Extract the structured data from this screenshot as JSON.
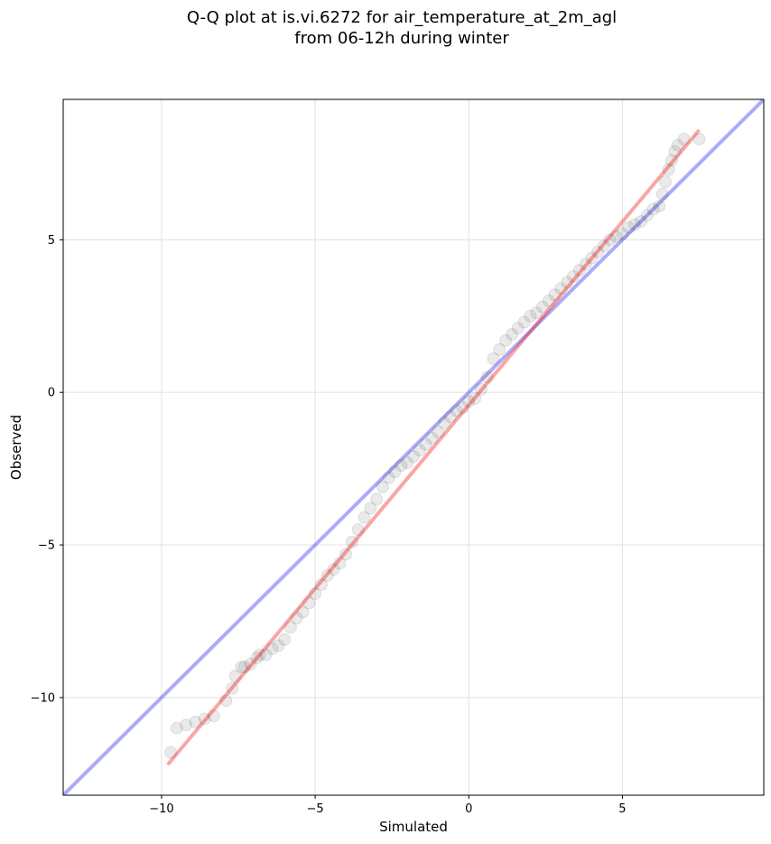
{
  "chart_data": {
    "type": "scatter",
    "title_line1": "Q-Q plot at is.vi.6272 for air_temperature_at_2m_agl",
    "title_line2": "from 06-12h during winter",
    "xlabel": "Simulated",
    "ylabel": "Observed",
    "xlim": [
      -13.2,
      9.6
    ],
    "ylim": [
      -13.2,
      9.6
    ],
    "xticks": [
      -10,
      -5,
      0,
      5
    ],
    "yticks": [
      -10,
      -5,
      0,
      5
    ],
    "xtick_labels": [
      "−10",
      "−5",
      "0",
      "5"
    ],
    "ytick_labels": [
      "−10",
      "−5",
      "0",
      "5"
    ],
    "grid": true,
    "series": [
      {
        "role": "quantiles",
        "color": "#333333",
        "x": [
          -9.7,
          -9.5,
          -9.2,
          -8.9,
          -8.6,
          -8.3,
          -7.9,
          -7.7,
          -7.6,
          -7.4,
          -7.3,
          -7.1,
          -6.9,
          -6.8,
          -6.6,
          -6.4,
          -6.2,
          -6.0,
          -5.8,
          -5.6,
          -5.4,
          -5.2,
          -5.0,
          -4.8,
          -4.6,
          -4.4,
          -4.2,
          -4.0,
          -3.8,
          -3.6,
          -3.4,
          -3.2,
          -3.0,
          -2.8,
          -2.6,
          -2.4,
          -2.2,
          -2.0,
          -1.8,
          -1.6,
          -1.4,
          -1.2,
          -1.0,
          -0.8,
          -0.6,
          -0.4,
          -0.2,
          0.0,
          0.2,
          0.4,
          0.6,
          0.8,
          1.0,
          1.2,
          1.4,
          1.6,
          1.8,
          2.0,
          2.2,
          2.4,
          2.6,
          2.8,
          3.0,
          3.2,
          3.4,
          3.6,
          3.8,
          4.0,
          4.2,
          4.4,
          4.6,
          4.8,
          5.0,
          5.2,
          5.4,
          5.6,
          5.8,
          6.0,
          6.2,
          6.3,
          6.4,
          6.5,
          6.6,
          6.7,
          6.8,
          7.0,
          7.5
        ],
        "y": [
          -11.8,
          -11.0,
          -10.9,
          -10.8,
          -10.7,
          -10.6,
          -10.1,
          -9.7,
          -9.3,
          -9.0,
          -9.0,
          -8.9,
          -8.7,
          -8.6,
          -8.6,
          -8.4,
          -8.3,
          -8.1,
          -7.7,
          -7.4,
          -7.2,
          -6.9,
          -6.6,
          -6.3,
          -6.0,
          -5.8,
          -5.6,
          -5.3,
          -4.9,
          -4.5,
          -4.1,
          -3.8,
          -3.5,
          -3.1,
          -2.8,
          -2.6,
          -2.4,
          -2.3,
          -2.1,
          -1.9,
          -1.7,
          -1.5,
          -1.3,
          -1.0,
          -0.8,
          -0.6,
          -0.5,
          -0.3,
          -0.2,
          0.1,
          0.5,
          1.1,
          1.4,
          1.7,
          1.9,
          2.1,
          2.3,
          2.5,
          2.6,
          2.8,
          3.0,
          3.2,
          3.4,
          3.6,
          3.8,
          4.0,
          4.2,
          4.4,
          4.6,
          4.8,
          5.0,
          5.1,
          5.2,
          5.4,
          5.5,
          5.6,
          5.8,
          6.0,
          6.1,
          6.5,
          6.9,
          7.3,
          7.6,
          7.9,
          8.1,
          8.3,
          8.3
        ]
      },
      {
        "role": "identity-line",
        "color": "#0000ee",
        "x": [
          -13.2,
          9.6
        ],
        "y": [
          -13.2,
          9.6
        ]
      },
      {
        "role": "fit-line",
        "color": "#ee0000",
        "x": [
          -9.8,
          7.5
        ],
        "y": [
          -12.2,
          8.6
        ]
      }
    ]
  }
}
